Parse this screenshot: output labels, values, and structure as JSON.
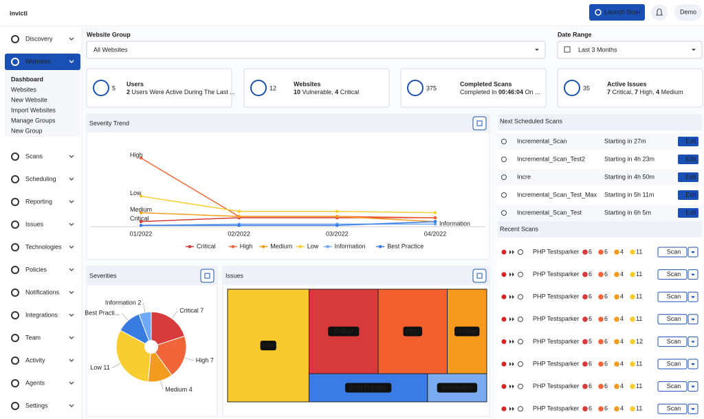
{
  "header": {
    "logo": "invicti",
    "launch_scan": "Launch Scan",
    "user": "Demo"
  },
  "sidebar": {
    "items": [
      {
        "label": "Discovery"
      },
      {
        "label": "Websites",
        "active": true,
        "submenu": [
          "Dashboard",
          "Websites",
          "New Website",
          "Import Websites",
          "Manage Groups",
          "New Group"
        ]
      },
      {
        "label": "Scans"
      },
      {
        "label": "Scheduling"
      },
      {
        "label": "Reporting"
      },
      {
        "label": "Issues"
      },
      {
        "label": "Technologies"
      },
      {
        "label": "Policies"
      },
      {
        "label": "Notifications"
      },
      {
        "label": "Integrations"
      },
      {
        "label": "Team"
      },
      {
        "label": "Activity"
      },
      {
        "label": "Agents"
      },
      {
        "label": "Settings"
      }
    ]
  },
  "filters": {
    "website_group": {
      "label": "Website Group",
      "value": "All Websites"
    },
    "date_range": {
      "label": "Date Range",
      "value": "Last 3 Months"
    }
  },
  "stats": [
    {
      "value": 5,
      "title": "Users",
      "desc": [
        {
          "text": "2",
          "bold": true
        },
        {
          "text": " Users Were Active During The Last ..."
        }
      ]
    },
    {
      "value": 12,
      "title": "Websites",
      "desc": [
        {
          "text": "10",
          "bold": true
        },
        {
          "text": " Vulnerable, "
        },
        {
          "text": "4",
          "bold": true
        },
        {
          "text": " Critical"
        }
      ]
    },
    {
      "value": 375,
      "title": "Completed Scans",
      "desc": [
        {
          "text": "Completed In "
        },
        {
          "text": "00:46:04",
          "bold": true
        },
        {
          "text": " On ..."
        }
      ]
    },
    {
      "value": 35,
      "title": "Active Issues",
      "desc": [
        {
          "text": "7",
          "bold": true
        },
        {
          "text": " Critical, "
        },
        {
          "text": "7",
          "bold": true
        },
        {
          "text": " High, "
        },
        {
          "text": "4",
          "bold": true
        },
        {
          "text": " Medium"
        }
      ]
    }
  ],
  "severity_trend": {
    "type": "line",
    "title": "Severity Trend",
    "x": [
      "01/2022",
      "02/2022",
      "03/2022",
      "04/2022"
    ],
    "series": [
      {
        "name": "Critical",
        "color": "#d63a3a",
        "values": [
          4,
          7,
          7,
          7
        ],
        "label_at": 0
      },
      {
        "name": "High",
        "color": "#f0663a",
        "values": [
          54,
          8,
          8,
          7
        ],
        "label_at": 0
      },
      {
        "name": "Medium",
        "color": "#f39c1f",
        "values": [
          11,
          8,
          8,
          4
        ],
        "label_at": 0
      },
      {
        "name": "Low",
        "color": "#f8cd32",
        "values": [
          24,
          12,
          12,
          11
        ],
        "label_at": 0
      },
      {
        "name": "Information",
        "color": "#6fa8f5",
        "values": [
          1,
          2,
          2,
          2
        ],
        "label_at": 3
      },
      {
        "name": "Best Practice",
        "color": "#3a7be0",
        "values": [
          1,
          1,
          1,
          4
        ]
      }
    ]
  },
  "severities": {
    "type": "pie",
    "title": "Severities",
    "categories": [
      "Critical",
      "High",
      "Medium",
      "Low",
      "Best Practice",
      "Information"
    ],
    "values": [
      7,
      7,
      4,
      11,
      4,
      2
    ],
    "value_labels": [
      "Critical 7",
      "High 7",
      "Medium 4",
      "Low 11",
      "Best Practi...",
      "Information 2"
    ],
    "colors": [
      "#d63a3a",
      "#f0663a",
      "#f39c1f",
      "#f8cd32",
      "#3a7be0",
      "#6fa8f5"
    ]
  },
  "issues": {
    "type": "treemap",
    "title": "Issues",
    "categories": [
      "Low",
      "Critical",
      "High",
      "Medium",
      "Best Practice",
      "Information"
    ],
    "values": [
      11,
      7,
      7,
      4,
      4,
      2
    ],
    "colors": [
      "#f8c92e",
      "#d63a3a",
      "#f2602f",
      "#f59a1c",
      "#3b7be6",
      "#7aaaf0"
    ]
  },
  "scheduled_scans": {
    "title": "Next Scheduled Scans",
    "button": "Edit",
    "rows": [
      {
        "name": "Incremental_Scan",
        "status": "Starting in 27m"
      },
      {
        "name": "Incremental_Scan_Test2",
        "status": "Starting in 4h 23m"
      },
      {
        "name": "Incre",
        "status": "Starting in 4h 50m"
      },
      {
        "name": "Incremental_Scan_Test_Max",
        "status": "Starting in 5h 11m"
      },
      {
        "name": "Incremental_Scan_Test",
        "status": "Starting in 6h 5m"
      }
    ]
  },
  "recent_scans": {
    "title": "Recent Scans",
    "button": "Scan",
    "rows": [
      {
        "name": "PHP Testsparker",
        "counts": [
          6,
          6,
          4,
          11
        ]
      },
      {
        "name": "PHP Testsparker",
        "counts": [
          6,
          6,
          4,
          11
        ]
      },
      {
        "name": "PHP Testsparker",
        "counts": [
          6,
          6,
          4,
          11
        ]
      },
      {
        "name": "PHP Testsparker",
        "counts": [
          6,
          6,
          4,
          11
        ]
      },
      {
        "name": "PHP Testsparker",
        "counts": [
          5,
          6,
          4,
          12
        ]
      },
      {
        "name": "PHP Testsparker",
        "counts": [
          6,
          6,
          4,
          11
        ]
      },
      {
        "name": "PHP Testsparker",
        "counts": [
          6,
          6,
          4,
          11
        ]
      },
      {
        "name": "PHP Testsparker",
        "counts": [
          6,
          6,
          4,
          11
        ]
      }
    ]
  }
}
